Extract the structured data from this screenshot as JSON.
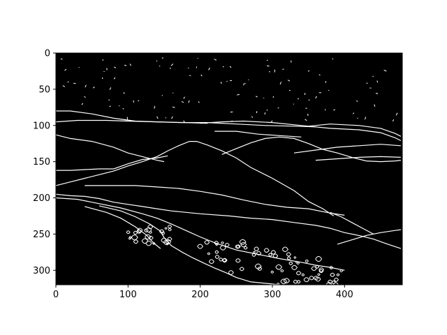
{
  "chart_data": {
    "type": "heatmap",
    "title": "",
    "xlabel": "",
    "ylabel": "",
    "xlim": [
      0,
      480
    ],
    "ylim": [
      320,
      0
    ],
    "x_ticks": [
      0,
      100,
      200,
      300,
      400
    ],
    "y_ticks": [
      0,
      50,
      100,
      150,
      200,
      250,
      300
    ],
    "x_tick_labels": [
      "0",
      "100",
      "200",
      "300",
      "400"
    ],
    "y_tick_labels": [
      "0",
      "50",
      "100",
      "150",
      "200",
      "250",
      "300"
    ],
    "colormap": "gray",
    "background_color": "#000000",
    "edge_color": "#ffffff",
    "content": "binary edge-detection image of layered mountain ridges with tree silhouettes in the foreground",
    "edges": [
      [
        [
          0,
          80
        ],
        [
          20,
          80
        ],
        [
          50,
          84
        ],
        [
          80,
          90
        ],
        [
          110,
          94
        ],
        [
          140,
          95
        ],
        [
          170,
          96
        ],
        [
          210,
          96
        ],
        [
          250,
          98
        ],
        [
          290,
          100
        ],
        [
          330,
          101
        ],
        [
          360,
          102
        ]
      ],
      [
        [
          0,
          95
        ],
        [
          30,
          93
        ],
        [
          70,
          93
        ],
        [
          100,
          94
        ],
        [
          140,
          95
        ],
        [
          180,
          96
        ],
        [
          210,
          97
        ]
      ],
      [
        [
          200,
          97
        ],
        [
          230,
          95
        ],
        [
          260,
          94
        ],
        [
          300,
          96
        ],
        [
          340,
          100
        ],
        [
          380,
          104
        ],
        [
          420,
          106
        ],
        [
          450,
          110
        ],
        [
          470,
          117
        ],
        [
          478,
          121
        ]
      ],
      [
        [
          220,
          108
        ],
        [
          250,
          108
        ],
        [
          280,
          112
        ],
        [
          310,
          114
        ],
        [
          340,
          116
        ]
      ],
      [
        [
          350,
          101
        ],
        [
          380,
          98
        ],
        [
          420,
          100
        ],
        [
          450,
          104
        ],
        [
          470,
          111
        ],
        [
          478,
          115
        ]
      ],
      [
        [
          0,
          113
        ],
        [
          20,
          118
        ],
        [
          50,
          122
        ],
        [
          80,
          130
        ],
        [
          100,
          138
        ],
        [
          120,
          143
        ],
        [
          140,
          148
        ],
        [
          150,
          150
        ]
      ],
      [
        [
          0,
          162
        ],
        [
          20,
          162
        ],
        [
          40,
          161
        ],
        [
          60,
          160
        ],
        [
          80,
          160
        ]
      ],
      [
        [
          80,
          160
        ],
        [
          100,
          153
        ],
        [
          120,
          147
        ],
        [
          140,
          145
        ],
        [
          155,
          142
        ]
      ],
      [
        [
          0,
          183
        ],
        [
          20,
          178
        ],
        [
          40,
          173
        ],
        [
          60,
          168
        ],
        [
          80,
          163
        ],
        [
          100,
          156
        ],
        [
          120,
          150
        ],
        [
          140,
          143
        ],
        [
          155,
          135
        ],
        [
          170,
          128
        ],
        [
          185,
          122
        ],
        [
          195,
          122
        ],
        [
          210,
          127
        ],
        [
          230,
          135
        ],
        [
          250,
          145
        ],
        [
          270,
          158
        ],
        [
          300,
          173
        ],
        [
          330,
          190
        ],
        [
          350,
          205
        ],
        [
          370,
          215
        ],
        [
          385,
          225
        ]
      ],
      [
        [
          230,
          140
        ],
        [
          250,
          132
        ],
        [
          270,
          124
        ],
        [
          290,
          118
        ],
        [
          310,
          116
        ],
        [
          330,
          118
        ],
        [
          350,
          125
        ],
        [
          370,
          133
        ],
        [
          390,
          138
        ],
        [
          410,
          144
        ],
        [
          430,
          149
        ],
        [
          450,
          150
        ],
        [
          470,
          149
        ],
        [
          478,
          148
        ]
      ],
      [
        [
          330,
          138
        ],
        [
          360,
          134
        ],
        [
          390,
          130
        ],
        [
          420,
          128
        ],
        [
          450,
          126
        ],
        [
          478,
          128
        ]
      ],
      [
        [
          360,
          148
        ],
        [
          390,
          146
        ],
        [
          420,
          144
        ],
        [
          450,
          143
        ],
        [
          478,
          144
        ]
      ],
      [
        [
          40,
          183
        ],
        [
          80,
          183
        ],
        [
          110,
          183
        ],
        [
          140,
          185
        ],
        [
          170,
          187
        ],
        [
          200,
          191
        ],
        [
          230,
          196
        ],
        [
          260,
          203
        ],
        [
          290,
          209
        ],
        [
          320,
          213
        ],
        [
          350,
          215
        ],
        [
          380,
          221
        ],
        [
          400,
          224
        ]
      ],
      [
        [
          0,
          195
        ],
        [
          20,
          197
        ],
        [
          40,
          198
        ],
        [
          60,
          201
        ],
        [
          80,
          206
        ],
        [
          100,
          209
        ],
        [
          120,
          212
        ],
        [
          140,
          215
        ],
        [
          160,
          218
        ],
        [
          200,
          222
        ],
        [
          240,
          225
        ],
        [
          270,
          228
        ],
        [
          300,
          230
        ],
        [
          330,
          234
        ],
        [
          360,
          238
        ],
        [
          380,
          242
        ],
        [
          400,
          248
        ],
        [
          420,
          252
        ],
        [
          440,
          257
        ],
        [
          460,
          264
        ],
        [
          478,
          270
        ]
      ],
      [
        [
          0,
          200
        ],
        [
          30,
          202
        ],
        [
          60,
          208
        ],
        [
          90,
          214
        ],
        [
          120,
          222
        ],
        [
          140,
          228
        ],
        [
          160,
          236
        ],
        [
          180,
          245
        ],
        [
          200,
          254
        ],
        [
          220,
          262
        ],
        [
          250,
          272
        ],
        [
          280,
          278
        ],
        [
          310,
          284
        ],
        [
          340,
          289
        ],
        [
          360,
          293
        ],
        [
          380,
          296
        ],
        [
          400,
          300
        ]
      ],
      [
        [
          60,
          211
        ],
        [
          90,
          218
        ],
        [
          110,
          226
        ],
        [
          130,
          236
        ],
        [
          145,
          246
        ],
        [
          150,
          255
        ],
        [
          160,
          266
        ],
        [
          175,
          275
        ],
        [
          190,
          283
        ],
        [
          205,
          290
        ],
        [
          220,
          297
        ],
        [
          235,
          303
        ],
        [
          250,
          310
        ],
        [
          270,
          316
        ],
        [
          290,
          318
        ],
        [
          310,
          320
        ]
      ],
      [
        [
          40,
          212
        ],
        [
          70,
          220
        ],
        [
          90,
          228
        ],
        [
          110,
          240
        ],
        [
          125,
          251
        ],
        [
          135,
          262
        ],
        [
          145,
          270
        ]
      ],
      [
        [
          390,
          264
        ],
        [
          410,
          258
        ],
        [
          430,
          252
        ],
        [
          450,
          248
        ],
        [
          470,
          245
        ],
        [
          478,
          244
        ]
      ],
      [
        [
          380,
          220
        ],
        [
          395,
          226
        ],
        [
          410,
          234
        ],
        [
          425,
          242
        ],
        [
          440,
          250
        ]
      ]
    ],
    "trees": [
      {
        "x": 130,
        "y": 238,
        "w": 28,
        "h": 28
      },
      {
        "x": 200,
        "y": 250,
        "w": 40,
        "h": 60
      },
      {
        "x": 240,
        "y": 255,
        "w": 45,
        "h": 55
      },
      {
        "x": 290,
        "y": 265,
        "w": 40,
        "h": 55
      },
      {
        "x": 330,
        "y": 280,
        "w": 40,
        "h": 40
      },
      {
        "x": 360,
        "y": 292,
        "w": 36,
        "h": 28
      },
      {
        "x": 100,
        "y": 244,
        "w": 30,
        "h": 20
      }
    ]
  }
}
